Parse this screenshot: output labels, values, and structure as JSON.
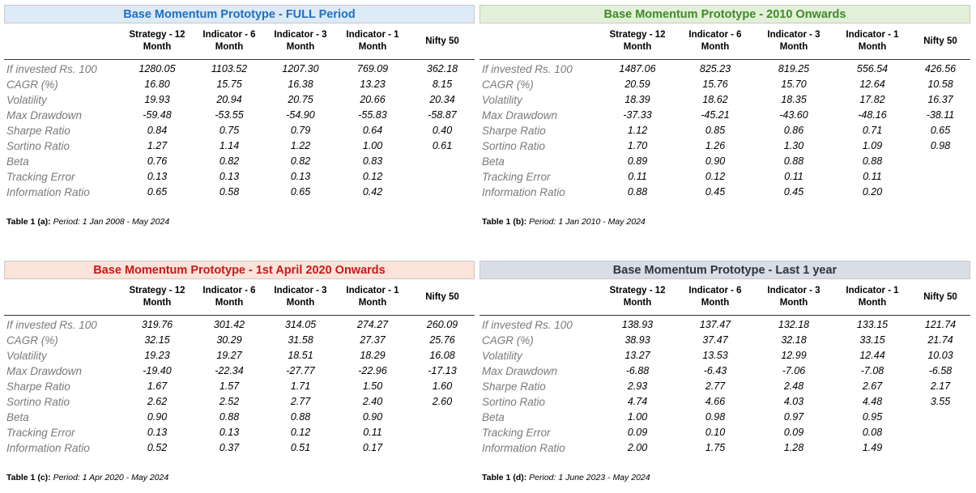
{
  "columns": [
    "Strategy - 12\nMonth",
    "Indicator - 6\nMonth",
    "Indicator - 3\nMonth",
    "Indicator - 1\nMonth",
    "Nifty 50"
  ],
  "metrics": [
    "If invested Rs. 100",
    "CAGR (%)",
    "Volatility",
    "Max Drawdown",
    "Sharpe Ratio",
    "Sortino Ratio",
    "Beta",
    "Tracking Error",
    "Information Ratio"
  ],
  "colors": {
    "panel_a_bg": "#ddeaf7",
    "panel_a_text": "#1f6fc1",
    "panel_b_bg": "#e3f0d9",
    "panel_b_text": "#3f8a2a",
    "panel_c_bg": "#fbe3d9",
    "panel_c_text": "#c8191c",
    "panel_d_bg": "#d9dde6",
    "panel_d_text": "#2c3441"
  },
  "panels": [
    {
      "title": "Base Momentum Prototype - FULL Period",
      "caption_bold": "Table 1 (a):",
      "caption_italic": "Period: 1 Jan 2008 -  May 2024",
      "values": [
        [
          "1280.05",
          "1103.52",
          "1207.30",
          "769.09",
          "362.18"
        ],
        [
          "16.80",
          "15.75",
          "16.38",
          "13.23",
          "8.15"
        ],
        [
          "19.93",
          "20.94",
          "20.75",
          "20.66",
          "20.34"
        ],
        [
          "-59.48",
          "-53.55",
          "-54.90",
          "-55.83",
          "-58.87"
        ],
        [
          "0.84",
          "0.75",
          "0.79",
          "0.64",
          "0.40"
        ],
        [
          "1.27",
          "1.14",
          "1.22",
          "1.00",
          "0.61"
        ],
        [
          "0.76",
          "0.82",
          "0.82",
          "0.83",
          ""
        ],
        [
          "0.13",
          "0.13",
          "0.13",
          "0.12",
          ""
        ],
        [
          "0.65",
          "0.58",
          "0.65",
          "0.42",
          ""
        ]
      ]
    },
    {
      "title": "Base Momentum Prototype - 2010 Onwards",
      "caption_bold": "Table 1 (b):",
      "caption_italic": "Period: 1 Jan 2010 -  May 2024",
      "values": [
        [
          "1487.06",
          "825.23",
          "819.25",
          "556.54",
          "426.56"
        ],
        [
          "20.59",
          "15.76",
          "15.70",
          "12.64",
          "10.58"
        ],
        [
          "18.39",
          "18.62",
          "18.35",
          "17.82",
          "16.37"
        ],
        [
          "-37.33",
          "-45.21",
          "-43.60",
          "-48.16",
          "-38.11"
        ],
        [
          "1.12",
          "0.85",
          "0.86",
          "0.71",
          "0.65"
        ],
        [
          "1.70",
          "1.26",
          "1.30",
          "1.09",
          "0.98"
        ],
        [
          "0.89",
          "0.90",
          "0.88",
          "0.88",
          ""
        ],
        [
          "0.11",
          "0.12",
          "0.11",
          "0.11",
          ""
        ],
        [
          "0.88",
          "0.45",
          "0.45",
          "0.20",
          ""
        ]
      ]
    },
    {
      "title": "Base Momentum Prototype - 1st April 2020 Onwards",
      "caption_bold": "Table 1 (c):",
      "caption_italic": "Period: 1 Apr 2020 -  May 2024",
      "values": [
        [
          "319.76",
          "301.42",
          "314.05",
          "274.27",
          "260.09"
        ],
        [
          "32.15",
          "30.29",
          "31.58",
          "27.37",
          "25.76"
        ],
        [
          "19.23",
          "19.27",
          "18.51",
          "18.29",
          "16.08"
        ],
        [
          "-19.40",
          "-22.34",
          "-27.77",
          "-22.96",
          "-17.13"
        ],
        [
          "1.67",
          "1.57",
          "1.71",
          "1.50",
          "1.60"
        ],
        [
          "2.62",
          "2.52",
          "2.77",
          "2.40",
          "2.60"
        ],
        [
          "0.90",
          "0.88",
          "0.88",
          "0.90",
          ""
        ],
        [
          "0.13",
          "0.13",
          "0.12",
          "0.11",
          ""
        ],
        [
          "0.52",
          "0.37",
          "0.51",
          "0.17",
          ""
        ]
      ]
    },
    {
      "title": "Base Momentum Prototype -  Last 1 year",
      "caption_bold": "Table 1 (d):",
      "caption_italic": "Period: 1 June 2023 -  May 2024",
      "values": [
        [
          "138.93",
          "137.47",
          "132.18",
          "133.15",
          "121.74"
        ],
        [
          "38.93",
          "37.47",
          "32.18",
          "33.15",
          "21.74"
        ],
        [
          "13.27",
          "13.53",
          "12.99",
          "12.44",
          "10.03"
        ],
        [
          "-6.88",
          "-6.43",
          "-7.06",
          "-7.08",
          "-6.58"
        ],
        [
          "2.93",
          "2.77",
          "2.48",
          "2.67",
          "2.17"
        ],
        [
          "4.74",
          "4.66",
          "4.03",
          "4.48",
          "3.55"
        ],
        [
          "1.00",
          "0.98",
          "0.97",
          "0.95",
          ""
        ],
        [
          "0.09",
          "0.10",
          "0.09",
          "0.08",
          ""
        ],
        [
          "2.00",
          "1.75",
          "1.28",
          "1.49",
          ""
        ]
      ]
    }
  ]
}
